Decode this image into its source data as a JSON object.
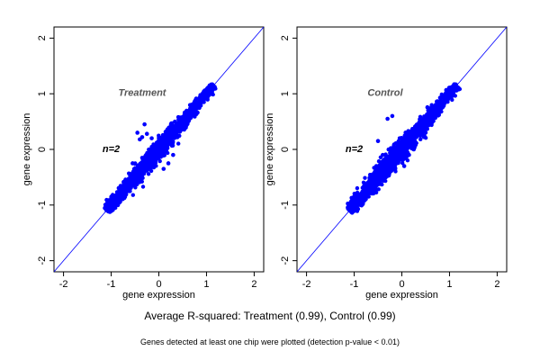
{
  "chart_data": [
    {
      "type": "scatter",
      "panel_label": "Treatment",
      "n_label": "n=2",
      "xlabel": "gene expression",
      "ylabel": "gene expression",
      "xlim": [
        -2.2,
        2.2
      ],
      "ylim": [
        -2.2,
        2.2
      ],
      "xticks": [
        -2,
        -1,
        0,
        1,
        2
      ],
      "yticks": [
        -2,
        -1,
        0,
        1,
        2
      ],
      "reference_line": "y = x",
      "point_color": "#0000ff",
      "line_color": "#0000ff",
      "cloud": {
        "x_range": [
          -1.1,
          1.15
        ],
        "spread": 0.07,
        "count": 1600
      },
      "outliers": [
        {
          "x": -0.3,
          "y": 0.45
        },
        {
          "x": -0.45,
          "y": 0.3
        },
        {
          "x": -0.35,
          "y": 0.22
        },
        {
          "x": -0.25,
          "y": 0.28
        },
        {
          "x": -0.4,
          "y": 0.18
        },
        {
          "x": 0.2,
          "y": -0.25
        },
        {
          "x": 0.1,
          "y": -0.35
        },
        {
          "x": -0.55,
          "y": -0.25
        },
        {
          "x": -0.15,
          "y": 0.2
        },
        {
          "x": 0.3,
          "y": -0.1
        }
      ]
    },
    {
      "type": "scatter",
      "panel_label": "Control",
      "n_label": "n=2",
      "xlabel": "gene expression",
      "ylabel": "gene expression",
      "xlim": [
        -2.2,
        2.2
      ],
      "ylim": [
        -2.2,
        2.2
      ],
      "xticks": [
        -2,
        -1,
        0,
        1,
        2
      ],
      "yticks": [
        -2,
        -1,
        0,
        1,
        2
      ],
      "reference_line": "y = x",
      "point_color": "#0000ff",
      "line_color": "#0000ff",
      "cloud": {
        "x_range": [
          -1.1,
          1.15
        ],
        "spread": 0.08,
        "count": 1600
      },
      "outliers": [
        {
          "x": -0.3,
          "y": 0.55
        },
        {
          "x": -0.2,
          "y": 0.6
        },
        {
          "x": 0.2,
          "y": 0.05
        },
        {
          "x": 0.15,
          "y": -0.1
        },
        {
          "x": -0.5,
          "y": 0.15
        },
        {
          "x": 0.05,
          "y": -0.3
        },
        {
          "x": -0.4,
          "y": -0.1
        },
        {
          "x": 0.25,
          "y": 0.0
        }
      ]
    }
  ],
  "captions": {
    "summary": "Average R-squared: Treatment (0.99), Control (0.99)",
    "note": "Genes detected at least one chip were plotted (detection p-value < 0.01)"
  }
}
